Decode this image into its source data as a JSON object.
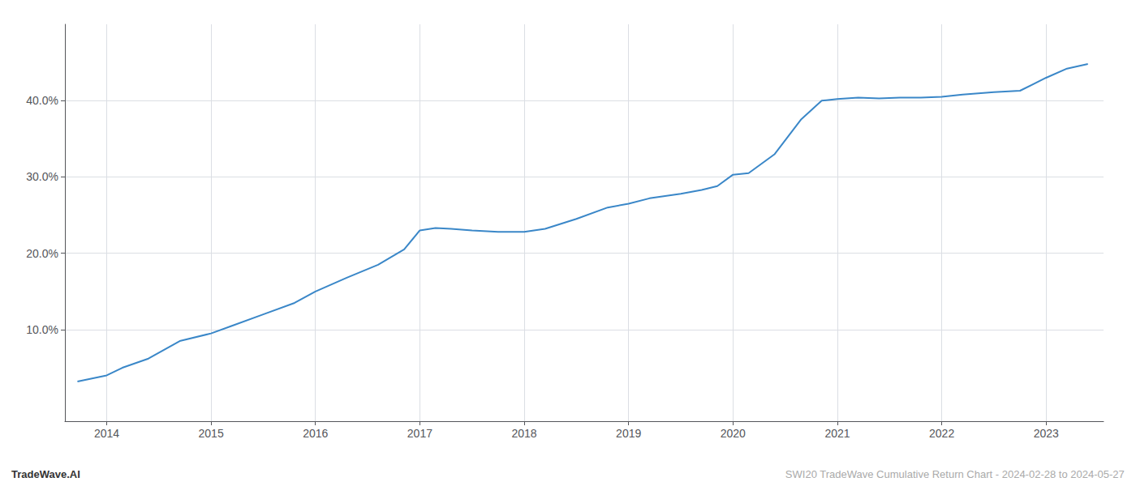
{
  "chart_data": {
    "type": "line",
    "x": [
      2013.72,
      2014.0,
      2014.15,
      2014.4,
      2014.7,
      2015.0,
      2015.2,
      2015.5,
      2015.8,
      2016.0,
      2016.3,
      2016.6,
      2016.85,
      2017.0,
      2017.15,
      2017.3,
      2017.5,
      2017.75,
      2018.0,
      2018.2,
      2018.5,
      2018.8,
      2019.0,
      2019.2,
      2019.5,
      2019.7,
      2019.85,
      2020.0,
      2020.15,
      2020.4,
      2020.65,
      2020.85,
      2021.0,
      2021.2,
      2021.4,
      2021.6,
      2021.8,
      2022.0,
      2022.2,
      2022.5,
      2022.75,
      2023.0,
      2023.2,
      2023.4
    ],
    "values": [
      3.2,
      4.0,
      5.0,
      6.2,
      8.5,
      9.5,
      10.5,
      12.0,
      13.5,
      15.0,
      16.8,
      18.5,
      20.5,
      23.0,
      23.3,
      23.2,
      23.0,
      22.8,
      22.8,
      23.2,
      24.5,
      26.0,
      26.5,
      27.2,
      27.8,
      28.3,
      28.8,
      30.3,
      30.5,
      33.0,
      37.5,
      40.0,
      40.2,
      40.4,
      40.3,
      40.4,
      40.4,
      40.5,
      40.8,
      41.1,
      41.3,
      43.0,
      44.2,
      44.8
    ],
    "color": "#3a87c8",
    "xlim": [
      2013.6,
      2023.55
    ],
    "xticks": [
      2014,
      2015,
      2016,
      2017,
      2018,
      2019,
      2020,
      2021,
      2022,
      2023
    ],
    "ylim": [
      -2,
      50
    ],
    "yticks": [
      {
        "value": 10.0,
        "label": "10.0%"
      },
      {
        "value": 20.0,
        "label": "20.0%"
      },
      {
        "value": 30.0,
        "label": "30.0%"
      },
      {
        "value": 40.0,
        "label": "40.0%"
      }
    ],
    "grid": true,
    "annotations": [
      "TradeWave.AI",
      "SWI20 TradeWave Cumulative Return Chart - 2024-02-28 to 2024-05-27"
    ]
  }
}
